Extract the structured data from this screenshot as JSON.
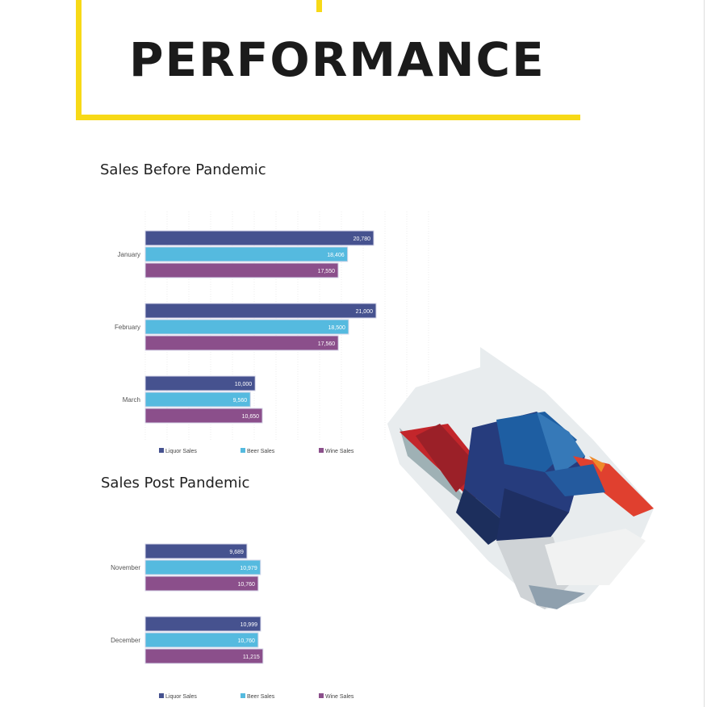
{
  "page": {
    "title": "PERFORMANCE",
    "accent": "#f7d917"
  },
  "chart_data": [
    {
      "type": "bar",
      "orientation": "horizontal",
      "title": "Sales Before Pandemic",
      "categories": [
        "January",
        "February",
        "March"
      ],
      "series": [
        {
          "name": "Liquor Sales",
          "color": "#46528f",
          "values": [
            20780,
            21000,
            10000
          ],
          "labels": [
            "20,780",
            "21,000",
            "10,000"
          ]
        },
        {
          "name": "Beer Sales",
          "color": "#55badf",
          "values": [
            18406,
            18500,
            9560
          ],
          "labels": [
            "18,406",
            "18,500",
            "9,560"
          ]
        },
        {
          "name": "Wine Sales",
          "color": "#8b4f8b",
          "values": [
            17550,
            17560,
            10650
          ],
          "labels": [
            "17,550",
            "17,560",
            "10,650"
          ]
        }
      ],
      "legend": "bottom",
      "grid": true,
      "xlim": [
        0,
        21000
      ]
    },
    {
      "type": "bar",
      "orientation": "horizontal",
      "title": "Sales Post Pandemic",
      "categories": [
        "November",
        "December"
      ],
      "series": [
        {
          "name": "Liquor Sales",
          "color": "#46528f",
          "values": [
            9689,
            10999
          ],
          "labels": [
            "9,689",
            "10,999"
          ]
        },
        {
          "name": "Beer Sales",
          "color": "#55badf",
          "values": [
            10979,
            10760
          ],
          "labels": [
            "10,979",
            "10,760"
          ]
        },
        {
          "name": "Wine Sales",
          "color": "#8b4f8b",
          "values": [
            10760,
            11215
          ],
          "labels": [
            "10,760",
            "11,215"
          ]
        }
      ],
      "legend": "bottom",
      "grid": false
    }
  ]
}
